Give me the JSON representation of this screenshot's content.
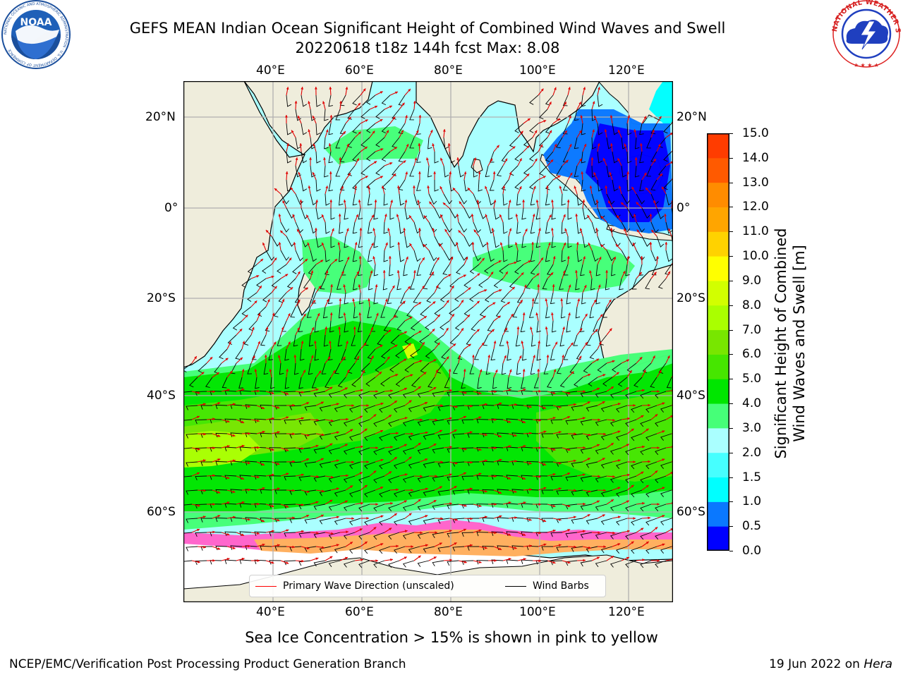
{
  "title": {
    "line1": "GEFS MEAN Indian Ocean Significant Height of Combined Wind Waves and Swell",
    "line2": "20220618 t18z 144h fcst   Max: 8.08"
  },
  "logos": {
    "noaa": {
      "text": "NOAA",
      "ring": "NATIONAL OCEANIC AND ATMOSPHERIC ADMINISTRATION · U.S. DEPARTMENT OF COMMERCE"
    },
    "nws": {
      "ring": "NATIONAL WEATHER SERVICE"
    }
  },
  "map": {
    "top_lon_ticks": [
      "40°E",
      "60°E",
      "80°E",
      "100°E",
      "120°E"
    ],
    "bottom_lon_ticks": [
      "40°E",
      "60°E",
      "80°E",
      "100°E",
      "120°E"
    ],
    "left_lat_ticks": [
      "20°N",
      "0°",
      "20°S",
      "40°S",
      "60°S"
    ],
    "right_lat_ticks": [
      "20°N",
      "0°",
      "20°S",
      "40°S",
      "60°S"
    ],
    "land_color": "#efeddc",
    "grid_color": "#b0b0b0"
  },
  "legend": {
    "primary_wave": "Primary Wave Direction (unscaled)",
    "wind_barbs": "Wind Barbs",
    "primary_wave_color": "#ff0000",
    "wind_barbs_color": "#000000"
  },
  "colorbar": {
    "ticks": [
      "15.0",
      "14.0",
      "13.0",
      "12.0",
      "11.0",
      "10.0",
      "9.0",
      "8.0",
      "7.0",
      "6.0",
      "5.0",
      "4.0",
      "3.0",
      "2.0",
      "1.5",
      "1.0",
      "0.5",
      "0.0"
    ],
    "label": "Significant Height of Combined\nWind Waves and Swell [m]",
    "label_line1": "Significant Height of Combined",
    "label_line2": "Wind Waves and Swell [m]",
    "colors": [
      "#0000ff",
      "#0a78ff",
      "#00ffff",
      "#46ffff",
      "#aaffff",
      "#46ff78",
      "#00e600",
      "#46e600",
      "#78e600",
      "#aaff00",
      "#d2ff00",
      "#ffff00",
      "#ffd200",
      "#ffa500",
      "#ff8c00",
      "#ff5a00",
      "#ff3c00",
      "#ff0000"
    ]
  },
  "ice_note": "Sea Ice Concentration > 15% is shown in pink to yellow",
  "footer": {
    "left": "NCEP/EMC/Verification Post Processing Product Generation Branch",
    "right_prefix": "19 Jun 2022 on ",
    "right_italic": "Hera"
  }
}
